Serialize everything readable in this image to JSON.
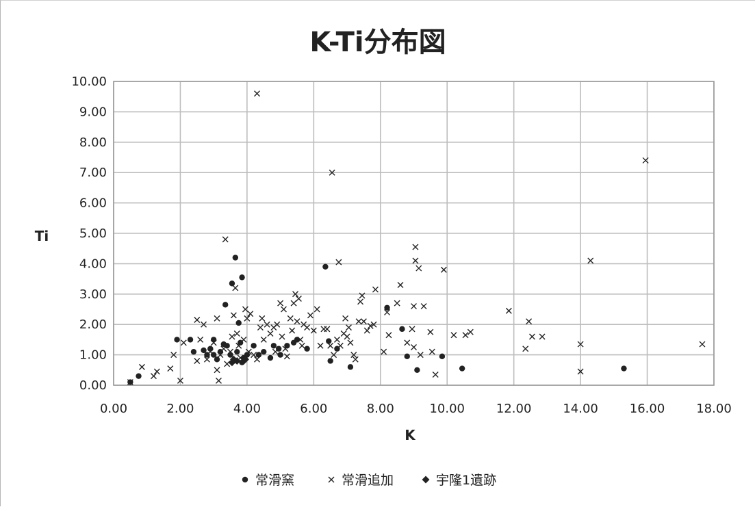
{
  "chart_data": {
    "type": "scatter",
    "title": "K-Ti分布図",
    "xlabel": "K",
    "ylabel": "Ti",
    "xlim": [
      0,
      18
    ],
    "ylim": [
      0,
      10
    ],
    "x_ticks": [
      "0.00",
      "2.00",
      "4.00",
      "6.00",
      "8.00",
      "10.00",
      "12.00",
      "14.00",
      "16.00",
      "18.00"
    ],
    "y_ticks": [
      "0.00",
      "1.00",
      "2.00",
      "3.00",
      "4.00",
      "5.00",
      "6.00",
      "7.00",
      "8.00",
      "9.00",
      "10.00"
    ],
    "grid": true,
    "legend_position": "bottom",
    "series": [
      {
        "name": "常滑窯",
        "marker": "circle",
        "color": "#222222",
        "points": [
          [
            0.5,
            0.1
          ],
          [
            0.75,
            0.3
          ],
          [
            1.9,
            1.5
          ],
          [
            2.3,
            1.5
          ],
          [
            2.4,
            1.1
          ],
          [
            2.7,
            1.15
          ],
          [
            2.8,
            1.0
          ],
          [
            2.9,
            1.2
          ],
          [
            3.0,
            1.5
          ],
          [
            3.0,
            1.0
          ],
          [
            3.1,
            0.85
          ],
          [
            3.2,
            1.1
          ],
          [
            3.3,
            1.35
          ],
          [
            3.35,
            2.65
          ],
          [
            3.4,
            1.3
          ],
          [
            3.5,
            1.0
          ],
          [
            3.55,
            3.35
          ],
          [
            3.6,
            0.8
          ],
          [
            3.65,
            4.2
          ],
          [
            3.7,
            1.1
          ],
          [
            3.75,
            2.05
          ],
          [
            3.8,
            1.4
          ],
          [
            3.85,
            0.75
          ],
          [
            3.85,
            3.55
          ],
          [
            3.9,
            0.9
          ],
          [
            4.0,
            1.0
          ],
          [
            4.2,
            1.3
          ],
          [
            4.35,
            1.0
          ],
          [
            4.5,
            1.1
          ],
          [
            4.7,
            0.9
          ],
          [
            4.8,
            1.3
          ],
          [
            4.95,
            1.2
          ],
          [
            5.0,
            1.0
          ],
          [
            5.2,
            1.3
          ],
          [
            5.4,
            1.4
          ],
          [
            5.5,
            1.5
          ],
          [
            5.8,
            1.2
          ],
          [
            6.35,
            3.9
          ],
          [
            6.45,
            1.45
          ],
          [
            6.5,
            0.8
          ],
          [
            6.7,
            1.2
          ],
          [
            7.1,
            0.6
          ],
          [
            8.2,
            2.55
          ],
          [
            8.65,
            1.85
          ],
          [
            8.8,
            0.95
          ],
          [
            9.1,
            0.5
          ],
          [
            9.85,
            0.95
          ],
          [
            10.45,
            0.55
          ],
          [
            15.3,
            0.55
          ]
        ]
      },
      {
        "name": "常滑追加",
        "marker": "cross",
        "color": "#222222",
        "points": [
          [
            0.5,
            0.1
          ],
          [
            0.85,
            0.6
          ],
          [
            1.2,
            0.3
          ],
          [
            1.3,
            0.45
          ],
          [
            1.7,
            0.55
          ],
          [
            1.8,
            1.0
          ],
          [
            2.0,
            0.15
          ],
          [
            2.1,
            1.4
          ],
          [
            2.5,
            2.15
          ],
          [
            2.5,
            0.8
          ],
          [
            2.6,
            1.5
          ],
          [
            2.7,
            2.0
          ],
          [
            2.8,
            0.85
          ],
          [
            2.9,
            1.1
          ],
          [
            3.0,
            1.4
          ],
          [
            3.1,
            2.2
          ],
          [
            3.1,
            0.5
          ],
          [
            3.15,
            0.15
          ],
          [
            3.2,
            1.0
          ],
          [
            3.3,
            1.2
          ],
          [
            3.35,
            4.8
          ],
          [
            3.4,
            0.7
          ],
          [
            3.5,
            1.1
          ],
          [
            3.55,
            1.6
          ],
          [
            3.6,
            2.3
          ],
          [
            3.65,
            3.2
          ],
          [
            3.7,
            1.7
          ],
          [
            3.75,
            1.3
          ],
          [
            3.8,
            0.9
          ],
          [
            3.9,
            1.5
          ],
          [
            3.95,
            2.5
          ],
          [
            4.0,
            2.2
          ],
          [
            4.05,
            1.1
          ],
          [
            4.1,
            2.35
          ],
          [
            4.2,
            1.0
          ],
          [
            4.3,
            0.85
          ],
          [
            4.3,
            9.6
          ],
          [
            4.4,
            1.9
          ],
          [
            4.45,
            2.2
          ],
          [
            4.5,
            1.5
          ],
          [
            4.6,
            2.0
          ],
          [
            4.7,
            1.7
          ],
          [
            4.8,
            1.9
          ],
          [
            4.85,
            1.1
          ],
          [
            4.9,
            2.0
          ],
          [
            5.0,
            2.7
          ],
          [
            5.05,
            1.6
          ],
          [
            5.1,
            2.5
          ],
          [
            5.15,
            1.2
          ],
          [
            5.2,
            0.95
          ],
          [
            5.3,
            2.2
          ],
          [
            5.35,
            1.8
          ],
          [
            5.4,
            2.7
          ],
          [
            5.45,
            3.0
          ],
          [
            5.5,
            2.1
          ],
          [
            5.55,
            2.85
          ],
          [
            5.6,
            1.5
          ],
          [
            5.65,
            1.3
          ],
          [
            5.7,
            2.0
          ],
          [
            5.8,
            1.9
          ],
          [
            5.9,
            2.3
          ],
          [
            6.0,
            1.8
          ],
          [
            6.1,
            2.5
          ],
          [
            6.2,
            1.3
          ],
          [
            6.3,
            1.85
          ],
          [
            6.4,
            1.85
          ],
          [
            6.5,
            1.3
          ],
          [
            6.55,
            7.0
          ],
          [
            6.6,
            1.0
          ],
          [
            6.7,
            1.5
          ],
          [
            6.75,
            4.05
          ],
          [
            6.8,
            1.3
          ],
          [
            6.9,
            1.7
          ],
          [
            6.95,
            2.2
          ],
          [
            7.0,
            1.6
          ],
          [
            7.05,
            1.9
          ],
          [
            7.1,
            1.4
          ],
          [
            7.2,
            1.0
          ],
          [
            7.25,
            0.85
          ],
          [
            7.35,
            2.1
          ],
          [
            7.4,
            2.75
          ],
          [
            7.45,
            2.95
          ],
          [
            7.5,
            2.1
          ],
          [
            7.6,
            1.8
          ],
          [
            7.7,
            1.95
          ],
          [
            7.8,
            2.0
          ],
          [
            7.85,
            3.15
          ],
          [
            8.1,
            1.1
          ],
          [
            8.2,
            2.4
          ],
          [
            8.25,
            1.65
          ],
          [
            8.5,
            2.7
          ],
          [
            8.6,
            3.3
          ],
          [
            8.8,
            1.4
          ],
          [
            8.95,
            1.85
          ],
          [
            9.0,
            1.25
          ],
          [
            9.0,
            2.6
          ],
          [
            9.05,
            4.55
          ],
          [
            9.05,
            4.1
          ],
          [
            9.15,
            3.85
          ],
          [
            9.2,
            1.0
          ],
          [
            9.3,
            2.6
          ],
          [
            9.5,
            1.75
          ],
          [
            9.55,
            1.1
          ],
          [
            9.65,
            0.35
          ],
          [
            9.9,
            3.8
          ],
          [
            10.2,
            1.65
          ],
          [
            10.55,
            1.65
          ],
          [
            10.7,
            1.75
          ],
          [
            11.85,
            2.45
          ],
          [
            12.35,
            1.2
          ],
          [
            12.45,
            2.1
          ],
          [
            12.55,
            1.6
          ],
          [
            12.85,
            1.6
          ],
          [
            14.0,
            1.35
          ],
          [
            14.0,
            0.45
          ],
          [
            14.3,
            4.1
          ],
          [
            15.95,
            7.4
          ],
          [
            17.65,
            1.35
          ]
        ]
      },
      {
        "name": "宇隆1遺跡",
        "marker": "diamond",
        "color": "#222222",
        "points": [
          [
            3.55,
            0.75
          ],
          [
            3.6,
            0.85
          ],
          [
            3.7,
            0.8
          ],
          [
            3.9,
            0.8
          ],
          [
            3.95,
            0.85
          ]
        ]
      }
    ]
  }
}
